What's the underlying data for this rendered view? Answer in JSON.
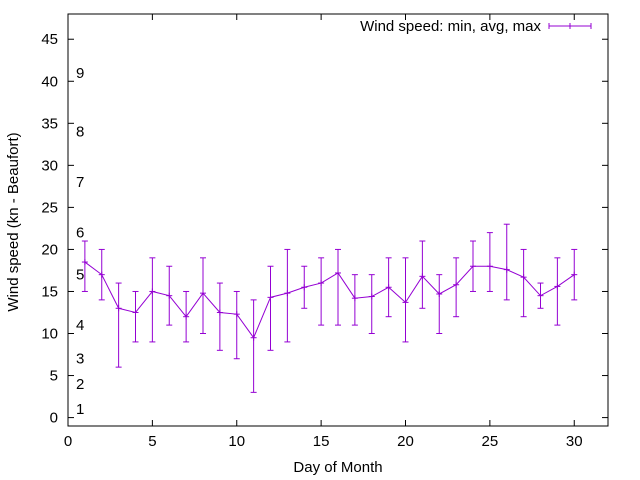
{
  "chart_data": {
    "type": "line",
    "xlabel": "Day of Month",
    "ylabel": "Wind speed (kn - Beaufort)",
    "xlim": [
      0,
      32
    ],
    "ylim": [
      -1,
      48
    ],
    "x_ticks": [
      0,
      5,
      10,
      15,
      20,
      25,
      30
    ],
    "y_ticks": [
      0,
      5,
      10,
      15,
      20,
      25,
      30,
      35,
      40,
      45
    ],
    "grid": false,
    "legend_position": "top-right",
    "series_color": "#9400d3",
    "series": [
      {
        "name": "Wind speed: min, avg, max",
        "x": [
          1,
          2,
          3,
          4,
          5,
          6,
          7,
          8,
          9,
          10,
          11,
          12,
          13,
          14,
          15,
          16,
          17,
          18,
          19,
          20,
          21,
          22,
          23,
          24,
          25,
          26,
          27,
          28,
          29,
          30
        ],
        "avg": [
          18.5,
          17,
          13,
          12.5,
          15,
          14.5,
          12,
          14.8,
          12.5,
          12.3,
          9.5,
          14.3,
          14.8,
          15.5,
          16,
          17.2,
          14.2,
          14.4,
          15.5,
          13.7,
          16.8,
          14.7,
          15.8,
          18,
          18,
          17.6,
          16.7,
          14.5,
          15.6,
          17
        ],
        "min": [
          15,
          14,
          6,
          9,
          9,
          11,
          9,
          10,
          8,
          7,
          3,
          8,
          9,
          13,
          11,
          11,
          11,
          10,
          12,
          9,
          13,
          10,
          12,
          15,
          15,
          14,
          12,
          13,
          11,
          14
        ],
        "max": [
          21,
          20,
          16,
          15,
          19,
          18,
          15,
          19,
          16,
          15,
          14,
          18,
          20,
          18,
          19,
          20,
          17,
          17,
          19,
          19,
          21,
          17,
          19,
          21,
          22,
          23,
          20,
          16,
          19,
          20
        ]
      }
    ],
    "annotations": [
      {
        "text": "1",
        "y": 1
      },
      {
        "text": "2",
        "y": 4
      },
      {
        "text": "3",
        "y": 7
      },
      {
        "text": "4",
        "y": 11
      },
      {
        "text": "5",
        "y": 17
      },
      {
        "text": "6",
        "y": 22
      },
      {
        "text": "7",
        "y": 28
      },
      {
        "text": "8",
        "y": 34
      },
      {
        "text": "9",
        "y": 41
      }
    ]
  }
}
